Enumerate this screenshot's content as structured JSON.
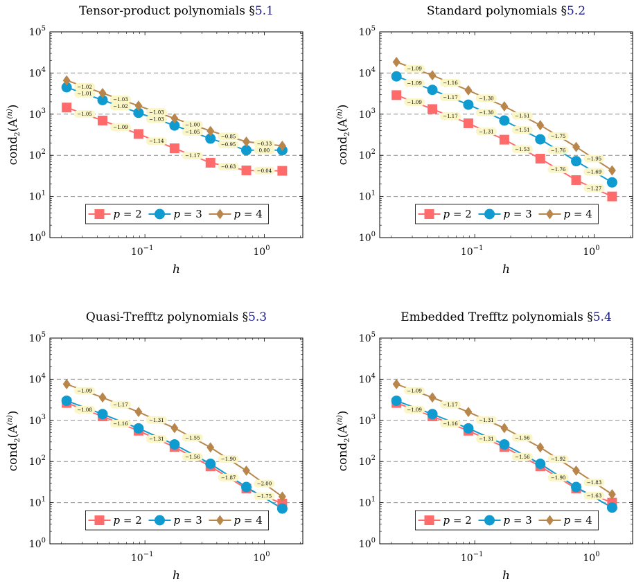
{
  "chart_data": [
    {
      "type": "line",
      "title": "Tensor-product polynomials §",
      "title_ref": "5.1",
      "xlabel": "h",
      "ylabel": "cond",
      "ylabel_sub": "2",
      "ylabel_tail": "(A",
      "ylabel_sup": "(n)",
      "ylabel_close": ")",
      "xscale": "log",
      "yscale": "log",
      "xlim": [
        0.016,
        2.1
      ],
      "ylim": [
        1,
        100000
      ],
      "grid": "y-dashed",
      "legend": "bottom-center",
      "series": [
        {
          "name": "p = 2",
          "color": "#ff6b6b",
          "marker": "square",
          "x": [
            0.0221,
            0.0442,
            0.0884,
            0.177,
            0.354,
            0.707,
            1.414
          ],
          "y": [
            1450,
            700,
            330,
            148,
            66,
            43,
            42
          ],
          "slopes": [
            "−1.05",
            "−1.09",
            "−1.14",
            "−1.17",
            "−0.63",
            "−0.04"
          ]
        },
        {
          "name": "p = 3",
          "color": "#0f9ad0",
          "marker": "circle",
          "x": [
            0.0221,
            0.0442,
            0.0884,
            0.177,
            0.354,
            0.707,
            1.414
          ],
          "y": [
            4500,
            2200,
            1080,
            530,
            255,
            133,
            133
          ],
          "slopes": [
            "−1.01",
            "−1.02",
            "−1.03",
            "−1.05",
            "−0.95",
            "0.00"
          ]
        },
        {
          "name": "p = 4",
          "color": "#b8864a",
          "marker": "diamond",
          "x": [
            0.0221,
            0.0442,
            0.0884,
            0.177,
            0.354,
            0.707,
            1.414
          ],
          "y": [
            6600,
            3250,
            1600,
            790,
            390,
            215,
            170
          ],
          "slopes": [
            "−1.02",
            "−1.03",
            "−1.03",
            "−1.00",
            "−0.85",
            "−0.33"
          ]
        }
      ]
    },
    {
      "type": "line",
      "title": "Standard polynomials §",
      "title_ref": "5.2",
      "xlabel": "h",
      "ylabel": "cond",
      "ylabel_sub": "2",
      "ylabel_tail": "(A",
      "ylabel_sup": "(n)",
      "ylabel_close": ")",
      "xscale": "log",
      "yscale": "log",
      "xlim": [
        0.016,
        2.1
      ],
      "ylim": [
        1,
        100000
      ],
      "grid": "y-dashed",
      "legend": "bottom-center",
      "series": [
        {
          "name": "p = 2",
          "color": "#ff6b6b",
          "marker": "square",
          "x": [
            0.0221,
            0.0442,
            0.0884,
            0.177,
            0.354,
            0.707,
            1.414
          ],
          "y": [
            2900,
            1330,
            600,
            240,
            83,
            25,
            10
          ],
          "slopes": [
            "−1.09",
            "−1.17",
            "−1.31",
            "−1.53",
            "−1.76",
            "−1.27"
          ]
        },
        {
          "name": "p = 3",
          "color": "#0f9ad0",
          "marker": "circle",
          "x": [
            0.0221,
            0.0442,
            0.0884,
            0.177,
            0.354,
            0.707,
            1.414
          ],
          "y": [
            8300,
            3900,
            1700,
            700,
            245,
            72,
            22
          ],
          "slopes": [
            "−1.09",
            "−1.17",
            "−1.30",
            "−1.51",
            "−1.76",
            "−1.69"
          ]
        },
        {
          "name": "p = 4",
          "color": "#b8864a",
          "marker": "diamond",
          "x": [
            0.0221,
            0.0442,
            0.0884,
            0.177,
            0.354,
            0.707,
            1.414
          ],
          "y": [
            18500,
            8800,
            3800,
            1550,
            540,
            160,
            43
          ],
          "slopes": [
            "−1.09",
            "−1.16",
            "−1.30",
            "−1.51",
            "−1.75",
            "−1.95"
          ]
        }
      ]
    },
    {
      "type": "line",
      "title": "Quasi-Trefftz polynomials §",
      "title_ref": "5.3",
      "xlabel": "h",
      "ylabel": "cond",
      "ylabel_sub": "2",
      "ylabel_tail": "(A",
      "ylabel_sup": "(n)",
      "ylabel_close": ")",
      "xscale": "log",
      "yscale": "log",
      "xlim": [
        0.016,
        2.1
      ],
      "ylim": [
        1,
        100000
      ],
      "grid": "y-dashed",
      "legend": "bottom-center",
      "series": [
        {
          "name": "p = 2",
          "color": "#ff6b6b",
          "marker": "square",
          "x": [
            0.0221,
            0.0442,
            0.0884,
            0.177,
            0.354,
            0.707,
            1.414
          ],
          "y": [
            2650,
            1250,
            560,
            225,
            76,
            22,
            9.5
          ],
          "slopes": [
            "−1.08",
            "−1.16",
            "−1.31",
            "−1.56",
            "−1.87",
            "−1.75"
          ]
        },
        {
          "name": "p = 3",
          "color": "#0f9ad0",
          "marker": "circle",
          "x": [
            0.0221,
            0.0442,
            0.0884,
            0.177,
            0.354,
            0.707,
            1.414
          ],
          "y": [
            3000,
            1420,
            640,
            260,
            88,
            24,
            7.2
          ],
          "slopes": []
        },
        {
          "name": "p = 4",
          "color": "#b8864a",
          "marker": "diamond",
          "x": [
            0.0221,
            0.0442,
            0.0884,
            0.177,
            0.354,
            0.707,
            1.414
          ],
          "y": [
            7600,
            3600,
            1600,
            650,
            220,
            60,
            14
          ],
          "slopes": [
            "−1.09",
            "−1.17",
            "−1.31",
            "−1.55",
            "−1.90",
            "−2.00"
          ]
        }
      ]
    },
    {
      "type": "line",
      "title": "Embedded Trefftz polynomials §",
      "title_ref": "5.4",
      "xlabel": "h",
      "ylabel": "cond",
      "ylabel_sub": "2",
      "ylabel_tail": "(A",
      "ylabel_sup": "(n)",
      "ylabel_close": ")",
      "xscale": "log",
      "yscale": "log",
      "xlim": [
        0.016,
        2.1
      ],
      "ylim": [
        1,
        100000
      ],
      "grid": "y-dashed",
      "legend": "bottom-center",
      "series": [
        {
          "name": "p = 2",
          "color": "#ff6b6b",
          "marker": "square",
          "x": [
            0.0221,
            0.0442,
            0.0884,
            0.177,
            0.354,
            0.707,
            1.414
          ],
          "y": [
            2650,
            1250,
            560,
            225,
            76,
            22,
            10
          ],
          "slopes": [
            "−1.09",
            "−1.16",
            "−1.31",
            "−1.56",
            "−1.90",
            "−1.63"
          ]
        },
        {
          "name": "p = 3",
          "color": "#0f9ad0",
          "marker": "circle",
          "x": [
            0.0221,
            0.0442,
            0.0884,
            0.177,
            0.354,
            0.707,
            1.414
          ],
          "y": [
            3000,
            1420,
            640,
            260,
            88,
            24,
            7.6
          ],
          "slopes": []
        },
        {
          "name": "p = 4",
          "color": "#b8864a",
          "marker": "diamond",
          "x": [
            0.0221,
            0.0442,
            0.0884,
            0.177,
            0.354,
            0.707,
            1.414
          ],
          "y": [
            7600,
            3600,
            1600,
            650,
            220,
            60,
            16
          ],
          "slopes": [
            "−1.09",
            "−1.17",
            "−1.31",
            "−1.56",
            "−1.92",
            "−1.83"
          ]
        }
      ]
    }
  ],
  "ticks": {
    "base": "10",
    "y_exponents": [
      "0",
      "1",
      "2",
      "3",
      "4",
      "5"
    ],
    "x_labels": [
      {
        "base": "10",
        "exp": "−1"
      },
      {
        "base": "10",
        "exp": "0"
      }
    ]
  }
}
